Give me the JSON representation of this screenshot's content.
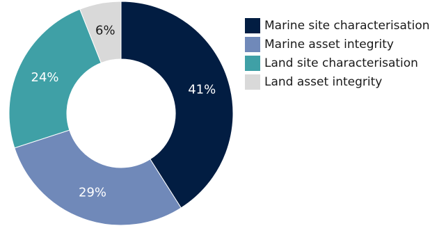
{
  "chart_data": {
    "type": "pie",
    "donut": true,
    "title": "",
    "categories": [
      "Marine site characterisation",
      "Marine asset integrity",
      "Land site characterisation",
      "Land asset integrity"
    ],
    "values": [
      41,
      29,
      24,
      6
    ],
    "labels": [
      "41%",
      "29%",
      "24%",
      "6%"
    ],
    "colors": [
      "#021d42",
      "#7089b9",
      "#3fa0a6",
      "#d9d9d9"
    ],
    "label_colors": [
      "#ffffff",
      "#ffffff",
      "#ffffff",
      "#1a1a1a"
    ],
    "legend_position": "right",
    "start_angle_deg": 0,
    "direction": "clockwise"
  }
}
